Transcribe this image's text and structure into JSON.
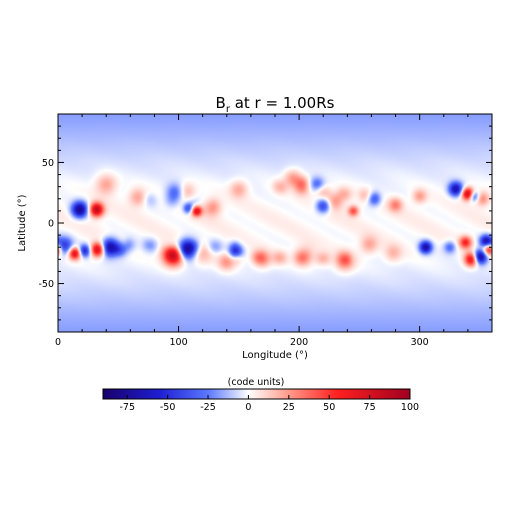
{
  "chart_data": {
    "type": "heatmap",
    "title_main": "B",
    "title_sub": "r",
    "title_rest": " at r = 1.00Rs",
    "xlabel": "Longitude (°)",
    "ylabel": "Latitude (°)",
    "xlim": [
      0,
      360
    ],
    "ylim": [
      -90,
      90
    ],
    "xticks": [
      0,
      100,
      200,
      300
    ],
    "yticks": [
      -50,
      0,
      50
    ],
    "grid": false,
    "colorbar": {
      "label": "(code units)",
      "range": [
        -90,
        100
      ],
      "ticks": [
        -75,
        -50,
        -25,
        0,
        25,
        50,
        75,
        100
      ],
      "colors": [
        "#1a006b",
        "#1e1ed2",
        "#5a78ff",
        "#ffffff",
        "#ff9a8a",
        "#ff2020",
        "#a00020"
      ]
    },
    "background_field": {
      "equator_value": 2,
      "polar_value": -18
    },
    "spots": [
      {
        "lon": 18,
        "lat": 11,
        "value": -78,
        "r": 4.5
      },
      {
        "lon": 32,
        "lat": 11,
        "value": 85,
        "r": 4
      },
      {
        "lon": 40,
        "lat": 32,
        "value": 25,
        "r": 6
      },
      {
        "lon": 66,
        "lat": 21,
        "value": 25,
        "r": 5
      },
      {
        "lon": 97,
        "lat": 25,
        "value": -30,
        "r": 5
      },
      {
        "lon": 107,
        "lat": 26,
        "value": 20,
        "r": 5
      },
      {
        "lon": 115,
        "lat": 10,
        "value": 72,
        "r": 3
      },
      {
        "lon": 108,
        "lat": 12,
        "value": -40,
        "r": 3
      },
      {
        "lon": 128,
        "lat": 13,
        "value": 28,
        "r": 5
      },
      {
        "lon": 150,
        "lat": 28,
        "value": 22,
        "r": 5
      },
      {
        "lon": 195,
        "lat": 37,
        "value": 28,
        "r": 5
      },
      {
        "lon": 203,
        "lat": 33,
        "value": 25,
        "r": 4
      },
      {
        "lon": 215,
        "lat": 32,
        "value": -28,
        "r": 4
      },
      {
        "lon": 220,
        "lat": 14,
        "value": -45,
        "r": 4
      },
      {
        "lon": 230,
        "lat": 18,
        "value": 25,
        "r": 5
      },
      {
        "lon": 245,
        "lat": 10,
        "value": 45,
        "r": 3
      },
      {
        "lon": 262,
        "lat": 20,
        "value": -40,
        "r": 4
      },
      {
        "lon": 280,
        "lat": 15,
        "value": 30,
        "r": 4
      },
      {
        "lon": 300,
        "lat": 22,
        "value": 25,
        "r": 4
      },
      {
        "lon": 330,
        "lat": 28,
        "value": -65,
        "r": 4
      },
      {
        "lon": 340,
        "lat": 24,
        "value": 85,
        "r": 3.5
      },
      {
        "lon": 345,
        "lat": 22,
        "value": -45,
        "r": 3
      },
      {
        "lon": 352,
        "lat": 20,
        "value": 30,
        "r": 4
      },
      {
        "lon": 5,
        "lat": -19,
        "value": -50,
        "r": 5
      },
      {
        "lon": 14,
        "lat": -25,
        "value": 75,
        "r": 3.5
      },
      {
        "lon": 22,
        "lat": -23,
        "value": -55,
        "r": 3.5
      },
      {
        "lon": 33,
        "lat": -22,
        "value": 80,
        "r": 4
      },
      {
        "lon": 43,
        "lat": -20,
        "value": -72,
        "r": 5
      },
      {
        "lon": 52,
        "lat": -22,
        "value": -30,
        "r": 4
      },
      {
        "lon": 96,
        "lat": -26,
        "value": 98,
        "r": 6
      },
      {
        "lon": 106,
        "lat": -22,
        "value": -85,
        "r": 5.5
      },
      {
        "lon": 120,
        "lat": -25,
        "value": 18,
        "r": 6
      },
      {
        "lon": 148,
        "lat": -24,
        "value": -48,
        "r": 4
      },
      {
        "lon": 140,
        "lat": -32,
        "value": 28,
        "r": 5
      },
      {
        "lon": 170,
        "lat": -30,
        "value": 25,
        "r": 5
      },
      {
        "lon": 205,
        "lat": -27,
        "value": 20,
        "r": 6
      },
      {
        "lon": 238,
        "lat": -32,
        "value": 25,
        "r": 6
      },
      {
        "lon": 258,
        "lat": -18,
        "value": 22,
        "r": 5
      },
      {
        "lon": 278,
        "lat": -25,
        "value": 18,
        "r": 5
      },
      {
        "lon": 305,
        "lat": -20,
        "value": -70,
        "r": 3.5
      },
      {
        "lon": 325,
        "lat": -20,
        "value": -30,
        "r": 3.5
      },
      {
        "lon": 338,
        "lat": -16,
        "value": 55,
        "r": 3.5
      },
      {
        "lon": 343,
        "lat": -30,
        "value": 75,
        "r": 4
      },
      {
        "lon": 350,
        "lat": -28,
        "value": -82,
        "r": 4
      },
      {
        "lon": 355,
        "lat": -15,
        "value": -65,
        "r": 3.5
      },
      {
        "lon": 358,
        "lat": -22,
        "value": 70,
        "r": 3.5
      }
    ],
    "bands": [
      {
        "lon0": 150,
        "lat0": -28,
        "lon1": 240,
        "lat1": -30,
        "value": 20,
        "width": 4
      },
      {
        "lon0": 180,
        "lat0": 30,
        "lon1": 260,
        "lat1": 22,
        "value": 18,
        "width": 4
      },
      {
        "lon0": 60,
        "lat0": -18,
        "lon1": 145,
        "lat1": -20,
        "value": -18,
        "width": 4
      },
      {
        "lon0": 70,
        "lat0": 20,
        "lon1": 120,
        "lat1": 15,
        "value": -12,
        "width": 4
      }
    ]
  }
}
